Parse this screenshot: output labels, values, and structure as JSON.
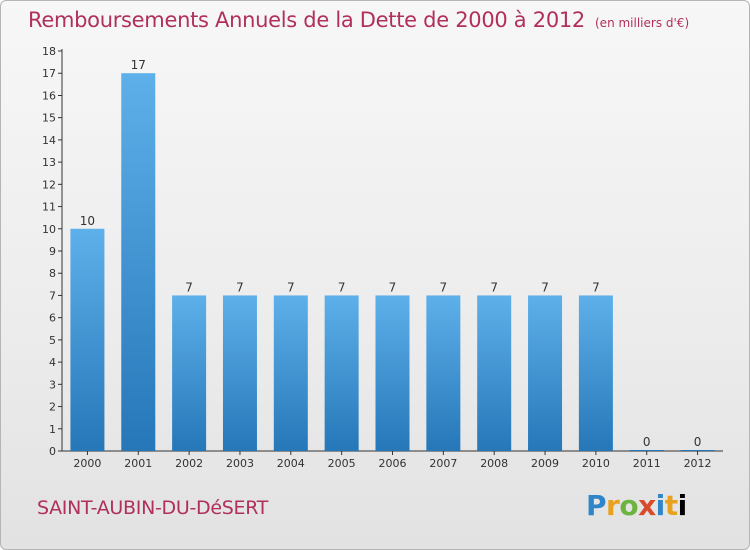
{
  "title": "Remboursements Annuels de la Dette de 2000 à 2012",
  "subtitle": "(en milliers d'€)",
  "place": "SAINT-AUBIN-DU-DéSERT",
  "brand": [
    "P",
    "r",
    "o",
    "x",
    "i",
    "t",
    "i"
  ],
  "colors": {
    "title": "#b0305a",
    "bar_top": "#5eb0ea",
    "bar_bottom": "#2677b8",
    "axis": "#333333"
  },
  "chart_data": {
    "type": "bar",
    "title": "Remboursements Annuels de la Dette de 2000 à 2012",
    "categories": [
      "2000",
      "2001",
      "2002",
      "2003",
      "2004",
      "2005",
      "2006",
      "2007",
      "2008",
      "2009",
      "2010",
      "2011",
      "2012"
    ],
    "values": [
      10,
      17,
      7,
      7,
      7,
      7,
      7,
      7,
      7,
      7,
      7,
      0,
      0
    ],
    "data_labels": [
      "10",
      "17",
      "7",
      "7",
      "7",
      "7",
      "7",
      "7",
      "7",
      "7",
      "7",
      "0",
      "0"
    ],
    "ylim": [
      0,
      18
    ],
    "yticks": [
      0,
      1,
      2,
      3,
      4,
      5,
      6,
      7,
      8,
      9,
      10,
      11,
      12,
      13,
      14,
      15,
      16,
      17,
      18
    ],
    "grid": false,
    "legend": "none"
  }
}
